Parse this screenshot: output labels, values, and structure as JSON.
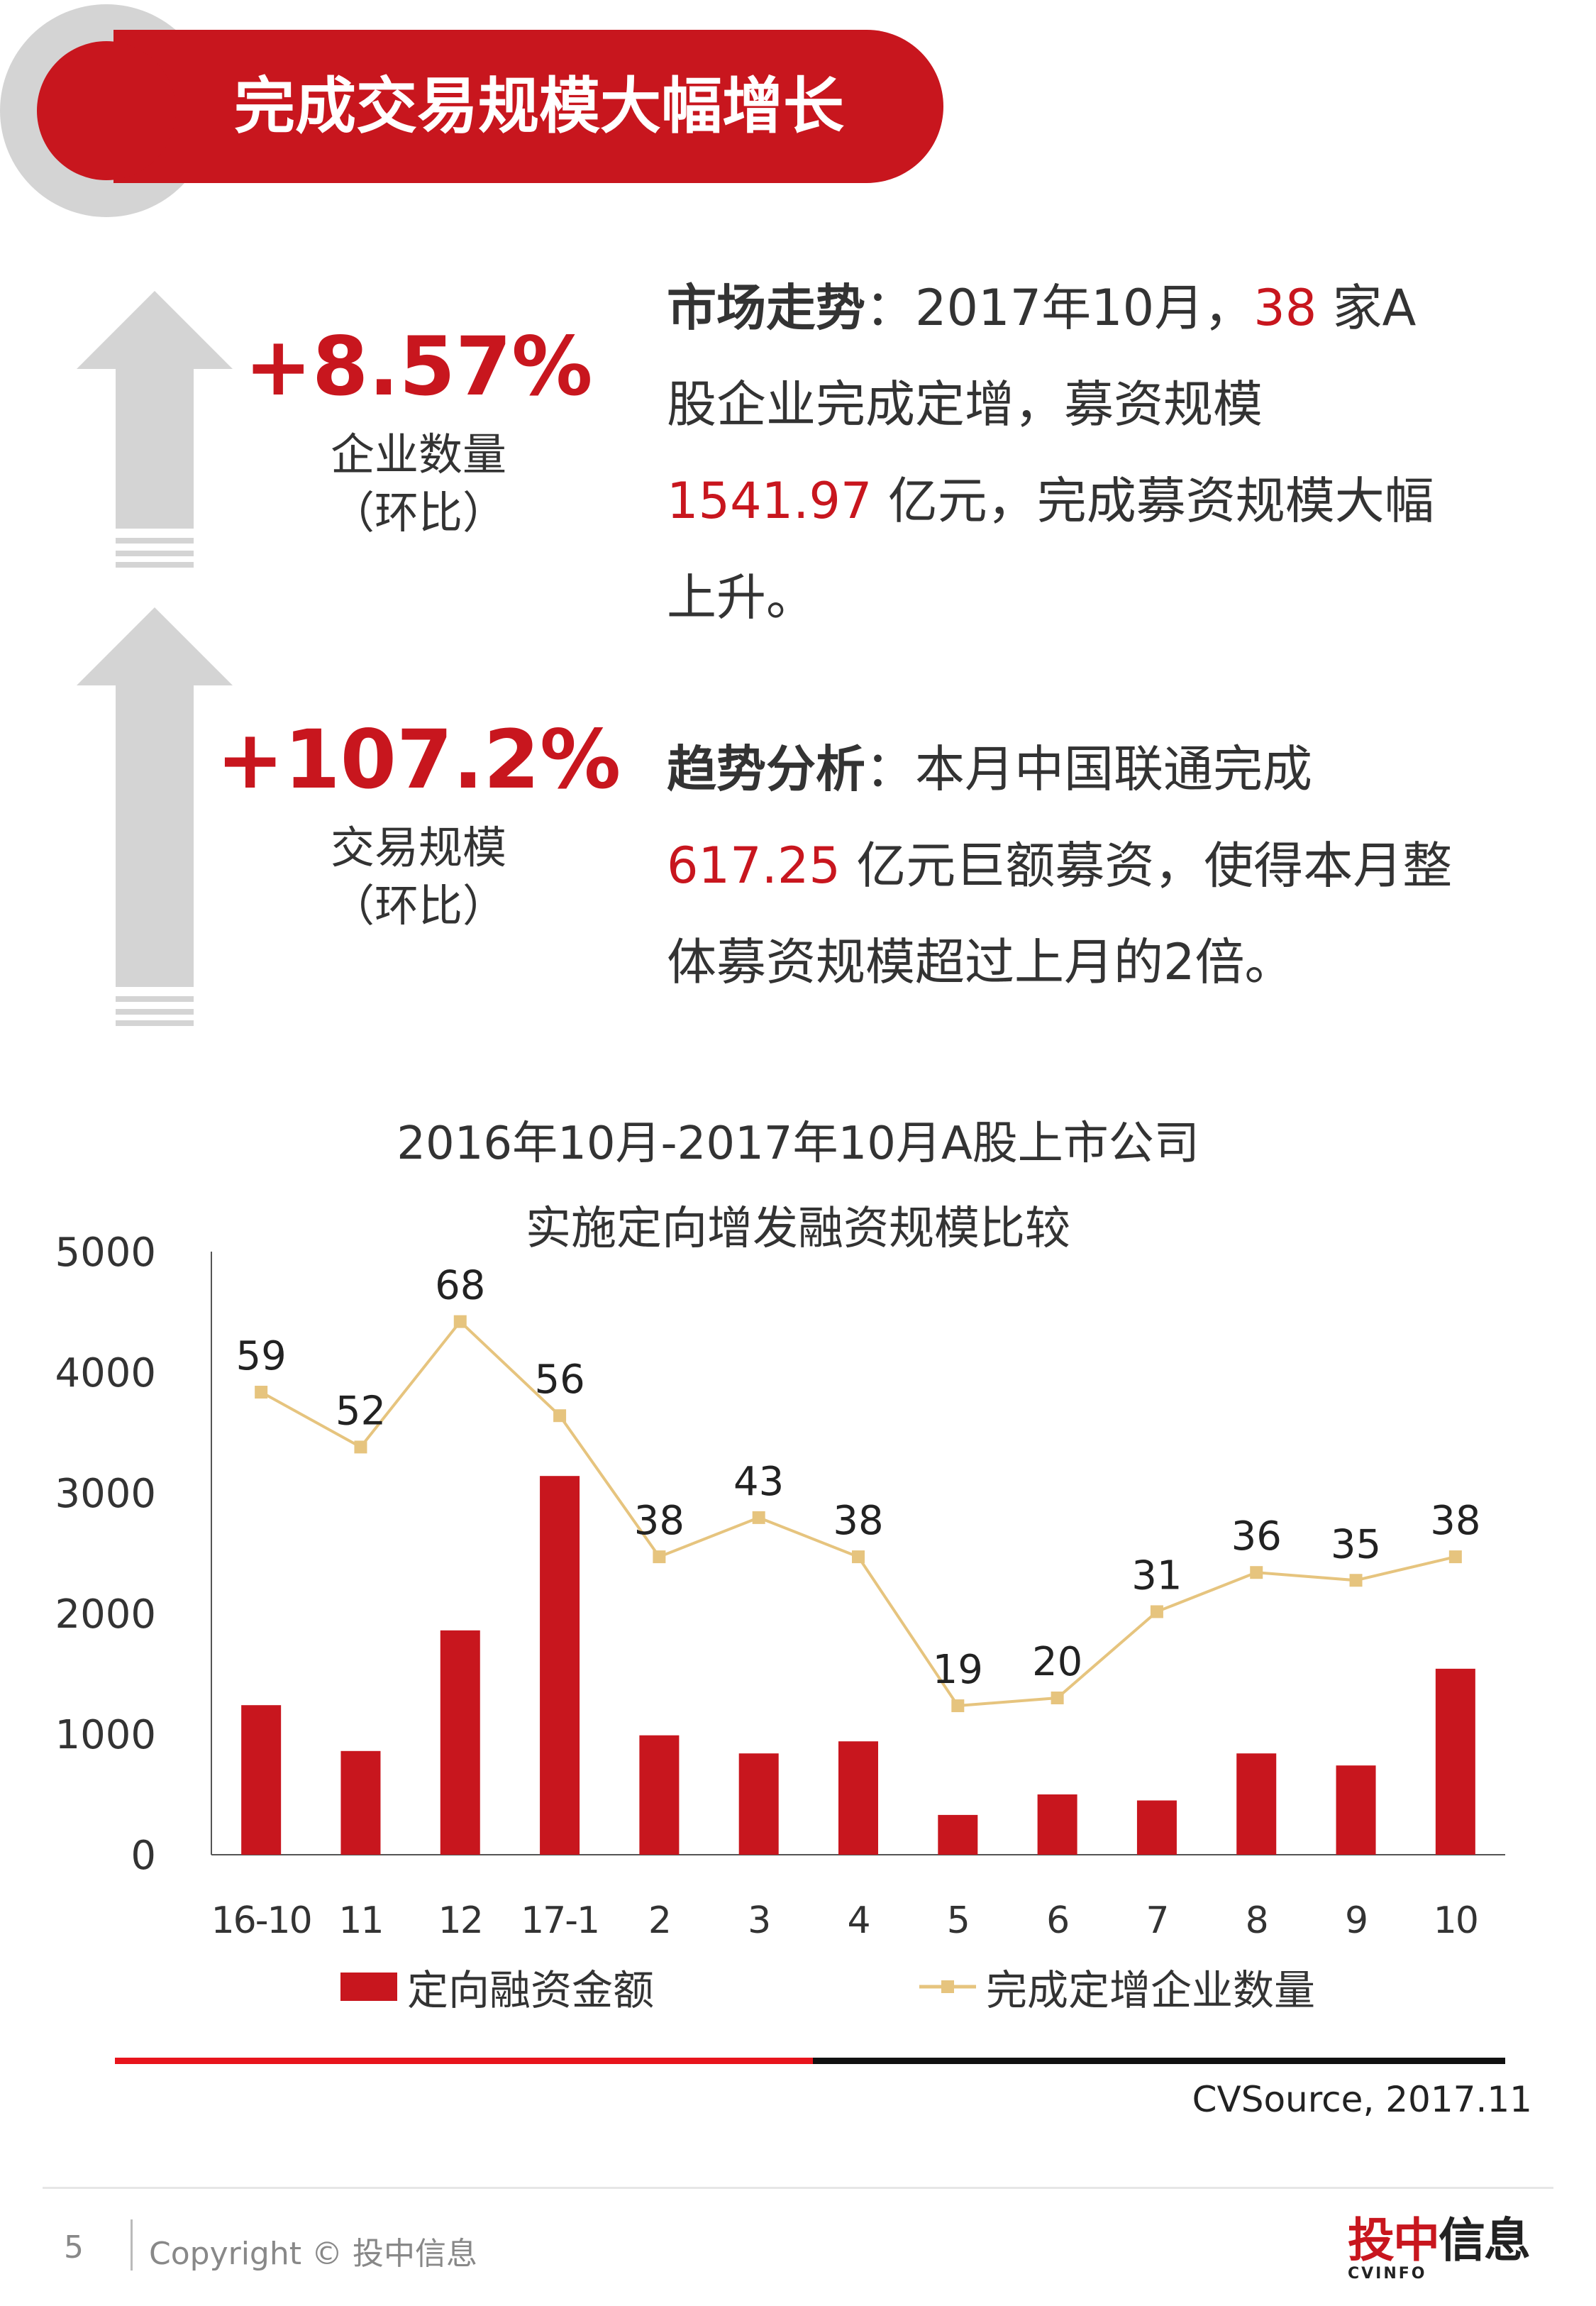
{
  "header": {
    "title": "完成交易规模大幅增长"
  },
  "stats": [
    {
      "value": "+8.57%",
      "label": "企业数量",
      "sub": "（环比）"
    },
    {
      "value": "+107.2%",
      "label": "交易规模",
      "sub": "（环比）"
    }
  ],
  "market": {
    "heading": "市场走势",
    "colon": "：",
    "part1": "2017年10月，",
    "num1": "38",
    "part2": " 家A股企业完成定增，募资规模",
    "num2": "1541.97",
    "part3": " 亿元，完成募资规模大幅上升。"
  },
  "analysis": {
    "heading": "趋势分析",
    "colon": "：",
    "part1": "本月中国联通完成",
    "num1": "617.25",
    "part2": " 亿元巨额募资，使得本月整体募资规模超过上月的2倍。"
  },
  "colors": {
    "accent": "#c8161e",
    "line": "#e6c47e",
    "gray": "#d4d4d4"
  },
  "chart_data": {
    "type": "bar",
    "title": [
      "2016年10月-2017年10月A股上市公司",
      "实施定向增发融资规模比较"
    ],
    "categories": [
      "16-10",
      "11",
      "12",
      "17-1",
      "2",
      "3",
      "4",
      "5",
      "6",
      "7",
      "8",
      "9",
      "10"
    ],
    "ylim": [
      0,
      5000
    ],
    "yticks": [
      "0",
      "1000",
      "2000",
      "3000",
      "4000",
      "5000"
    ],
    "series": [
      {
        "name": "定向融资金额",
        "type": "bar",
        "color": "#c8161e",
        "values": [
          1240,
          860,
          1860,
          3140,
          990,
          840,
          940,
          330,
          500,
          450,
          840,
          740,
          1542
        ]
      },
      {
        "name": "完成定增企业数量",
        "type": "line",
        "color": "#e6c47e",
        "values": [
          59,
          52,
          68,
          56,
          38,
          43,
          38,
          19,
          20,
          31,
          36,
          35,
          38
        ]
      }
    ],
    "line_labels": [
      "59",
      "52",
      "68",
      "56",
      "38",
      "43",
      "38",
      "19",
      "20",
      "31",
      "36",
      "35",
      "38"
    ],
    "legend_position": "bottom"
  },
  "source": "CVSource, 2017.11",
  "footer": {
    "page": "5",
    "copyright": "Copyright © 投中信息"
  },
  "logo": {
    "name": "投中信息",
    "sub": "CVINFO"
  }
}
